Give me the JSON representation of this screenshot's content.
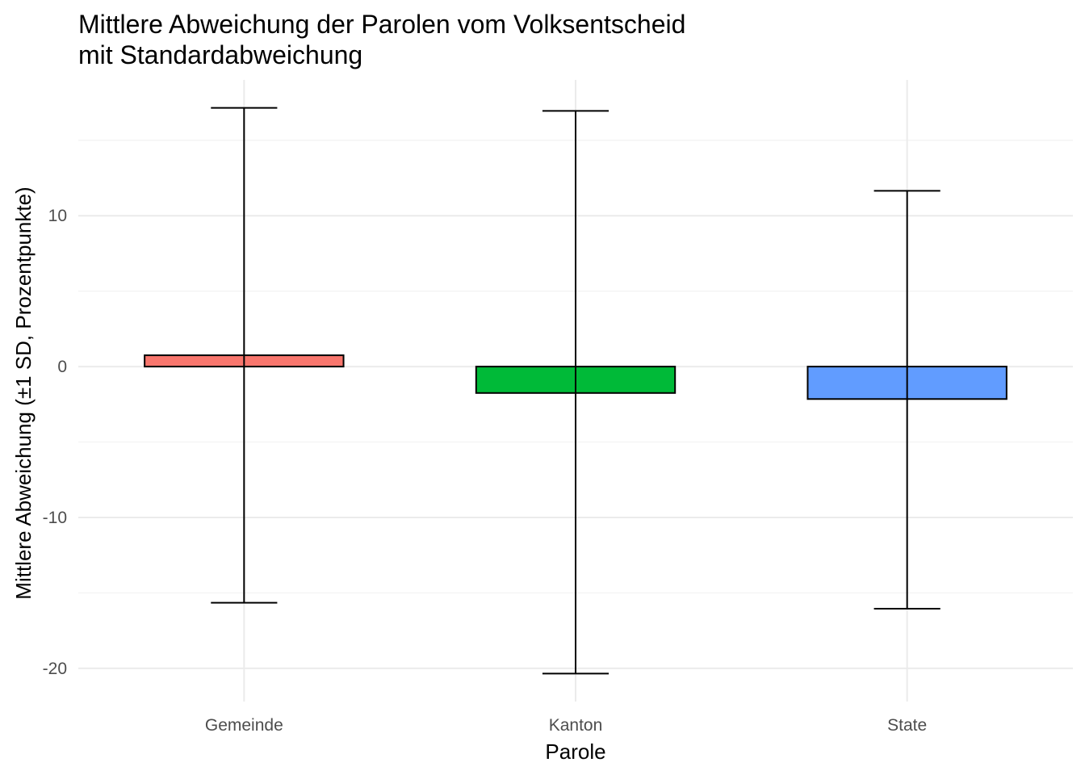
{
  "chart_data": {
    "type": "bar",
    "title": "Mittlere Abweichung der Parolen vom Volksentscheid",
    "subtitle": "mit Standardabweichung",
    "xlabel": "Parole",
    "ylabel": "Mittlere Abweichung (±1 SD, Prozentpunkte)",
    "categories": [
      "Gemeinde",
      "Kanton",
      "State"
    ],
    "values": [
      0.75,
      -1.75,
      -2.15
    ],
    "error_lower": [
      -15.65,
      -20.35,
      -16.05
    ],
    "error_upper": [
      17.15,
      16.95,
      11.65
    ],
    "colors": [
      "#F8766D",
      "#00BA38",
      "#619CFF"
    ],
    "ylim": [
      -22.2,
      19.0
    ],
    "yticks": [
      -20,
      -10,
      0,
      10
    ],
    "ytick_labels": [
      "-20",
      "-10",
      "0",
      "10"
    ],
    "grid": true,
    "legend": "none"
  }
}
